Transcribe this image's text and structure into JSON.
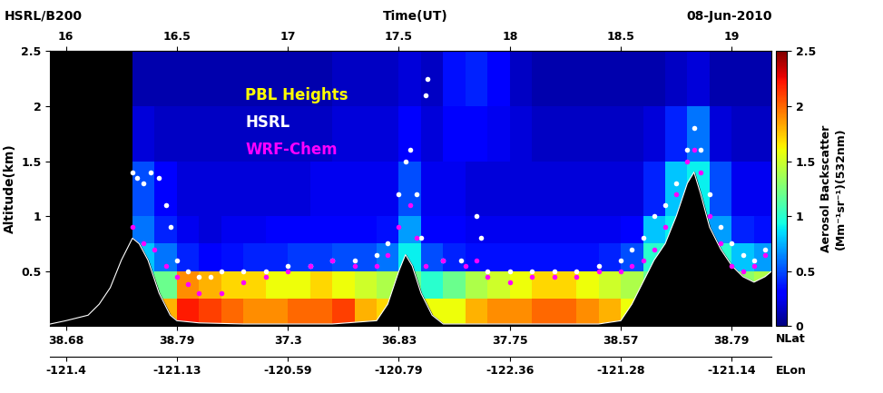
{
  "chart_data": {
    "type": "heatmap",
    "title": "HSRL/B200",
    "date": "08-Jun-2010",
    "xlabel": "Time(UT)",
    "ylabel": "Altitude(km)",
    "xlim": [
      15.93,
      19.18
    ],
    "xticks": [
      16,
      16.5,
      17,
      17.5,
      18,
      18.5,
      19
    ],
    "lat_label": "NLat",
    "lat_ticks": [
      {
        "value": 16,
        "label": "38.68"
      },
      {
        "value": 16.5,
        "label": "38.79"
      },
      {
        "value": 17,
        "label": "37.3"
      },
      {
        "value": 17.5,
        "label": "36.83"
      },
      {
        "value": 18,
        "label": "37.75"
      },
      {
        "value": 18.5,
        "label": "38.57"
      },
      {
        "value": 19,
        "label": "38.79"
      }
    ],
    "lon_label": "ELon",
    "lon_ticks": [
      {
        "value": 16,
        "label": "-121.4"
      },
      {
        "value": 16.5,
        "label": "-121.13"
      },
      {
        "value": 17,
        "label": "-120.59"
      },
      {
        "value": 17.5,
        "label": "-120.79"
      },
      {
        "value": 18,
        "label": "-122.36"
      },
      {
        "value": 18.5,
        "label": "-121.28"
      },
      {
        "value": 19,
        "label": "-121.14"
      }
    ],
    "ylim": [
      0,
      2.5
    ],
    "yticks": [
      0.5,
      1,
      1.5,
      2,
      2.5
    ],
    "annotations": [
      {
        "text": "PBL Heights",
        "color": "#ffff00"
      }
    ],
    "colorbar": {
      "label": "Aerosol Backscatter\n(Mm⁻¹sr⁻¹)(532nm)",
      "range": [
        0,
        2.5
      ],
      "ticks": [
        0,
        0.5,
        1,
        1.5,
        2,
        2.5
      ]
    },
    "backscatter": {
      "time_edges": [
        16.0,
        16.1,
        16.2,
        16.3,
        16.4,
        16.5,
        16.6,
        16.7,
        16.8,
        16.9,
        17.0,
        17.1,
        17.2,
        17.3,
        17.4,
        17.5,
        17.6,
        17.7,
        17.8,
        17.9,
        18.0,
        18.1,
        18.2,
        18.3,
        18.4,
        18.5,
        18.6,
        18.7,
        18.8,
        18.9,
        19.0,
        19.1,
        19.2
      ],
      "altitude_edges": [
        0,
        0.25,
        0.5,
        0.75,
        1,
        1.5,
        2,
        2.5
      ],
      "columns": [
        [
          null,
          null,
          null,
          null,
          null,
          null,
          null
        ],
        [
          null,
          null,
          null,
          null,
          null,
          null,
          null
        ],
        [
          null,
          null,
          null,
          null,
          null,
          null,
          null
        ],
        [
          1.0,
          1.0,
          0.8,
          0.6,
          0.5,
          0.2,
          0.1
        ],
        [
          1.8,
          1.2,
          0.6,
          0.4,
          0.3,
          0.15,
          0.1
        ],
        [
          2.2,
          1.9,
          0.4,
          0.25,
          0.2,
          0.15,
          0.1
        ],
        [
          2.1,
          1.8,
          0.3,
          0.2,
          0.2,
          0.15,
          0.1
        ],
        [
          2.0,
          1.7,
          0.35,
          0.25,
          0.2,
          0.15,
          0.1
        ],
        [
          1.9,
          1.7,
          0.4,
          0.25,
          0.2,
          0.15,
          0.1
        ],
        [
          1.9,
          1.6,
          0.4,
          0.3,
          0.2,
          0.15,
          0.1
        ],
        [
          2.0,
          1.6,
          0.45,
          0.3,
          0.2,
          0.15,
          0.1
        ],
        [
          2.0,
          1.7,
          0.45,
          0.3,
          0.25,
          0.15,
          0.1
        ],
        [
          2.1,
          1.6,
          0.5,
          0.3,
          0.25,
          0.2,
          0.15
        ],
        [
          1.8,
          1.5,
          0.5,
          0.3,
          0.25,
          0.2,
          0.15
        ],
        [
          1.7,
          1.4,
          0.6,
          0.35,
          0.25,
          0.2,
          0.15
        ],
        [
          1.5,
          1.2,
          0.9,
          0.7,
          0.5,
          0.3,
          0.2
        ],
        [
          1.6,
          1.0,
          0.5,
          0.3,
          0.25,
          0.2,
          0.15
        ],
        [
          1.6,
          1.2,
          0.4,
          0.3,
          0.25,
          0.3,
          0.35
        ],
        [
          1.8,
          1.4,
          0.35,
          0.25,
          0.2,
          0.3,
          0.4
        ],
        [
          1.9,
          1.5,
          0.35,
          0.25,
          0.2,
          0.25,
          0.3
        ],
        [
          1.9,
          1.6,
          0.35,
          0.25,
          0.2,
          0.2,
          0.15
        ],
        [
          2.0,
          1.7,
          0.35,
          0.25,
          0.2,
          0.15,
          0.1
        ],
        [
          2.0,
          1.7,
          0.35,
          0.25,
          0.2,
          0.15,
          0.1
        ],
        [
          1.9,
          1.6,
          0.35,
          0.25,
          0.2,
          0.15,
          0.1
        ],
        [
          1.8,
          1.5,
          0.4,
          0.25,
          0.2,
          0.15,
          0.1
        ],
        [
          1.6,
          1.4,
          0.5,
          0.3,
          0.2,
          0.15,
          0.1
        ],
        [
          1.4,
          1.2,
          1.0,
          0.8,
          0.4,
          0.2,
          0.1
        ],
        [
          1.2,
          1.1,
          1.0,
          0.9,
          0.8,
          0.4,
          0.15
        ],
        [
          1.2,
          1.1,
          1.0,
          0.9,
          0.9,
          0.6,
          0.2
        ],
        [
          1.3,
          1.1,
          1.0,
          0.7,
          0.5,
          0.2,
          0.1
        ],
        [
          1.5,
          1.3,
          0.8,
          0.4,
          0.25,
          0.15,
          0.1
        ],
        [
          1.6,
          1.4,
          0.7,
          0.35,
          0.25,
          0.15,
          0.1
        ]
      ]
    },
    "terrain": {
      "x": [
        15.93,
        16.0,
        16.1,
        16.15,
        16.2,
        16.25,
        16.3,
        16.33,
        16.37,
        16.42,
        16.47,
        16.5,
        16.6,
        16.8,
        17.0,
        17.2,
        17.4,
        17.45,
        17.5,
        17.53,
        17.56,
        17.6,
        17.65,
        17.7,
        17.8,
        18.0,
        18.2,
        18.4,
        18.5,
        18.55,
        18.6,
        18.65,
        18.7,
        18.75,
        18.8,
        18.83,
        18.86,
        18.9,
        18.95,
        19.0,
        19.05,
        19.1,
        19.15,
        19.18
      ],
      "values": [
        0.02,
        0.05,
        0.1,
        0.2,
        0.35,
        0.6,
        0.8,
        0.75,
        0.6,
        0.3,
        0.1,
        0.05,
        0.03,
        0.02,
        0.02,
        0.02,
        0.05,
        0.2,
        0.5,
        0.65,
        0.55,
        0.3,
        0.1,
        0.02,
        0.02,
        0.02,
        0.02,
        0.02,
        0.05,
        0.2,
        0.4,
        0.6,
        0.75,
        1.0,
        1.3,
        1.4,
        1.2,
        0.9,
        0.7,
        0.55,
        0.45,
        0.4,
        0.45,
        0.5
      ]
    },
    "series": [
      {
        "name": "HSRL",
        "type": "scatter",
        "color": "#ffffff",
        "marker": "o",
        "x": [
          16.3,
          16.32,
          16.35,
          16.38,
          16.42,
          16.45,
          16.47,
          16.5,
          16.55,
          16.6,
          16.65,
          16.7,
          16.8,
          16.9,
          17.0,
          17.1,
          17.2,
          17.3,
          17.4,
          17.45,
          17.5,
          17.53,
          17.55,
          17.58,
          17.6,
          17.62,
          17.63,
          17.7,
          17.78,
          17.85,
          17.87,
          17.9,
          18.0,
          18.1,
          18.2,
          18.3,
          18.4,
          18.5,
          18.55,
          18.6,
          18.65,
          18.7,
          18.75,
          18.8,
          18.83,
          18.86,
          18.9,
          18.95,
          19.0,
          19.05,
          19.1,
          19.15
        ],
        "values": [
          1.4,
          1.35,
          1.3,
          1.4,
          1.35,
          1.1,
          0.9,
          0.6,
          0.5,
          0.45,
          0.45,
          0.5,
          0.5,
          0.5,
          0.55,
          0.55,
          0.6,
          0.6,
          0.65,
          0.75,
          1.2,
          1.5,
          1.6,
          1.2,
          0.8,
          2.1,
          2.25,
          0.6,
          0.6,
          1.0,
          0.8,
          0.5,
          0.5,
          0.5,
          0.5,
          0.5,
          0.55,
          0.6,
          0.7,
          0.8,
          1.0,
          1.1,
          1.3,
          1.6,
          1.8,
          1.6,
          1.2,
          0.9,
          0.75,
          0.65,
          0.6,
          0.7
        ]
      },
      {
        "name": "WRF-Chem",
        "type": "scatter",
        "color": "#ff00ff",
        "marker": "o",
        "x": [
          16.3,
          16.35,
          16.4,
          16.45,
          16.5,
          16.55,
          16.6,
          16.7,
          16.8,
          16.9,
          17.0,
          17.1,
          17.2,
          17.3,
          17.4,
          17.45,
          17.5,
          17.55,
          17.58,
          17.62,
          17.7,
          17.8,
          17.85,
          17.9,
          18.0,
          18.1,
          18.2,
          18.3,
          18.4,
          18.5,
          18.55,
          18.6,
          18.65,
          18.7,
          18.75,
          18.8,
          18.83,
          18.86,
          18.9,
          18.95,
          19.0,
          19.05,
          19.1,
          19.15
        ],
        "values": [
          0.9,
          0.75,
          0.7,
          0.55,
          0.45,
          0.38,
          0.3,
          0.3,
          0.4,
          0.45,
          0.5,
          0.55,
          0.6,
          0.55,
          0.55,
          0.65,
          0.9,
          1.1,
          0.8,
          0.55,
          0.6,
          0.55,
          0.6,
          0.45,
          0.4,
          0.45,
          0.45,
          0.45,
          0.5,
          0.5,
          0.55,
          0.6,
          0.7,
          0.9,
          1.2,
          1.5,
          1.6,
          1.4,
          1.0,
          0.75,
          0.55,
          0.5,
          0.55,
          0.65
        ]
      }
    ]
  }
}
